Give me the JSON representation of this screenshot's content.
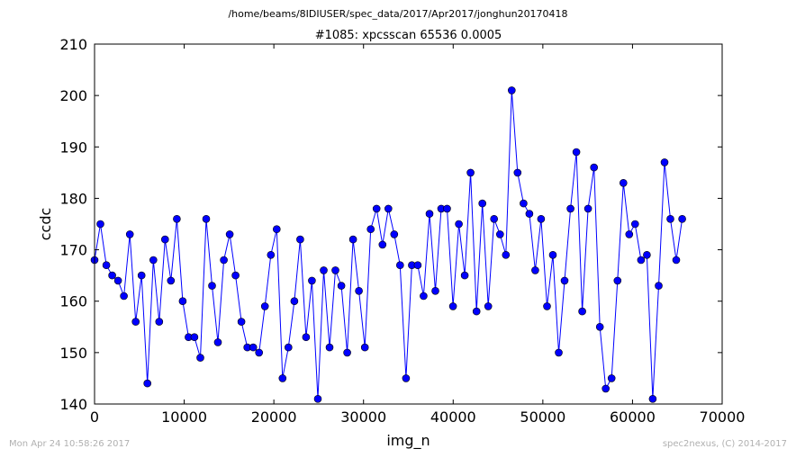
{
  "header": {
    "path": "/home/beams/8IDIUSER/spec_data/2017/Apr2017/jonghun20170418"
  },
  "footer": {
    "timestamp": "Mon Apr 24 10:58:26 2017",
    "credit": "spec2nexus, (C) 2014-2017"
  },
  "colors": {
    "series": "#0000ff",
    "axes": "#000000",
    "footer_text": "#b0b0b0"
  },
  "chart_data": {
    "type": "line",
    "title": "#1085: xpcsscan 65536 0.0005",
    "xlabel": "img_n",
    "ylabel": "ccdc",
    "xlim": [
      0,
      70000
    ],
    "ylim": [
      140,
      210
    ],
    "xticks": [
      "0",
      "10000",
      "20000",
      "30000",
      "40000",
      "50000",
      "60000",
      "70000"
    ],
    "yticks": [
      "140",
      "150",
      "160",
      "170",
      "180",
      "190",
      "200",
      "210"
    ],
    "grid": false,
    "marker": "circle",
    "x": [
      0,
      655,
      1311,
      1966,
      2621,
      3277,
      3932,
      4588,
      5243,
      5898,
      6554,
      7209,
      7864,
      8520,
      9175,
      9830,
      10486,
      11141,
      11796,
      12452,
      13107,
      13763,
      14418,
      15073,
      15729,
      16384,
      17039,
      17695,
      18350,
      19005,
      19661,
      20316,
      20972,
      21627,
      22282,
      22938,
      23593,
      24248,
      24904,
      25559,
      26214,
      26870,
      27525,
      28180,
      28836,
      29491,
      30147,
      30802,
      31457,
      32113,
      32768,
      33423,
      34079,
      34734,
      35389,
      36045,
      36700,
      37356,
      38011,
      38666,
      39322,
      39977,
      40632,
      41288,
      41943,
      42598,
      43254,
      43909,
      44565,
      45220,
      45875,
      46531,
      47186,
      47841,
      48497,
      49152,
      49807,
      50463,
      51118,
      51773,
      52429,
      53084,
      53740,
      54395,
      55050,
      55706,
      56361,
      57016,
      57672,
      58327,
      58982,
      59638,
      60293,
      60949,
      61604,
      62259,
      62915,
      63570,
      64225,
      64881,
      65536
    ],
    "y": [
      168,
      175,
      167,
      165,
      164,
      161,
      173,
      156,
      165,
      144,
      168,
      156,
      172,
      164,
      176,
      160,
      153,
      153,
      149,
      176,
      163,
      152,
      168,
      173,
      165,
      156,
      151,
      151,
      150,
      159,
      169,
      174,
      145,
      151,
      160,
      172,
      153,
      164,
      141,
      166,
      151,
      166,
      163,
      150,
      172,
      162,
      151,
      174,
      178,
      171,
      178,
      173,
      167,
      145,
      167,
      167,
      161,
      177,
      162,
      178,
      178,
      159,
      175,
      165,
      185,
      158,
      179,
      159,
      176,
      173,
      169,
      201,
      185,
      179,
      177,
      166,
      176,
      159,
      169,
      150,
      164,
      178,
      189,
      158,
      178,
      186,
      155,
      143,
      145,
      164,
      183,
      173,
      175,
      168,
      169,
      141,
      163,
      187,
      176,
      168,
      176
    ]
  }
}
